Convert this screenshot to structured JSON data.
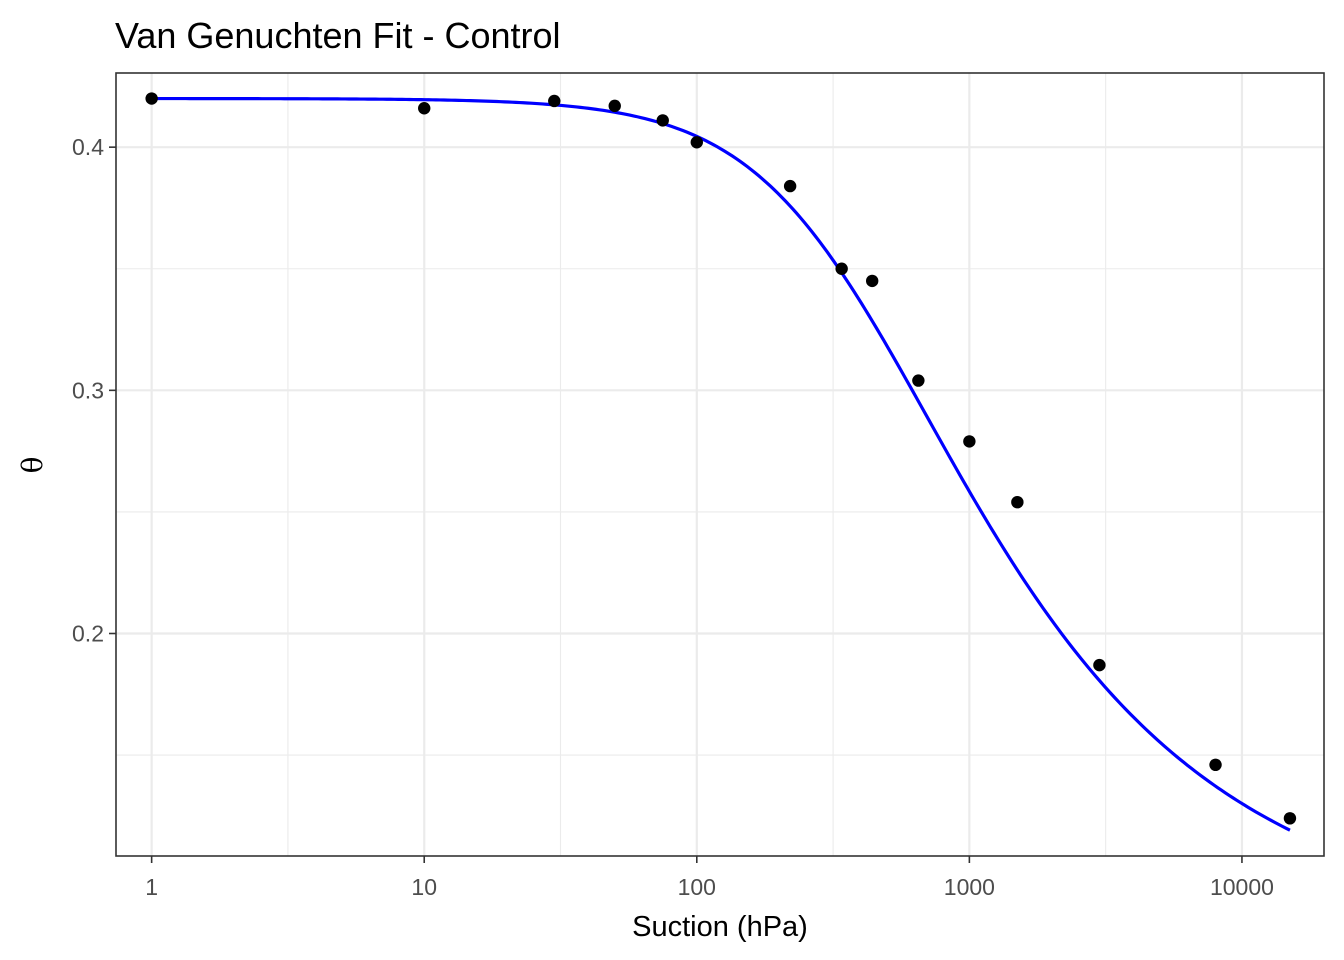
{
  "chart_data": {
    "type": "scatter",
    "title": "Van Genuchten Fit - Control",
    "xlabel": "Suction (hPa)",
    "ylabel": "θ",
    "x_scale": "log10",
    "xlim": [
      0.74,
      20000
    ],
    "ylim": [
      0.1085,
      0.4305
    ],
    "x_ticks": [
      1,
      10,
      100,
      1000,
      10000
    ],
    "x_tick_labels": [
      "1",
      "10",
      "100",
      "1000",
      "10000"
    ],
    "y_ticks": [
      0.2,
      0.3,
      0.4
    ],
    "y_tick_labels": [
      "0.2",
      "0.3",
      "0.4"
    ],
    "grid": true,
    "legend": "none",
    "series": [
      {
        "kind": "points",
        "color": "#000000",
        "x": [
          1,
          10,
          30,
          50,
          75,
          100,
          220,
          340,
          440,
          650,
          1000,
          1500,
          3000,
          8000,
          15000
        ],
        "y": [
          0.42,
          0.416,
          0.419,
          0.417,
          0.411,
          0.402,
          0.384,
          0.35,
          0.345,
          0.304,
          0.279,
          0.254,
          0.187,
          0.146,
          0.124
        ]
      },
      {
        "kind": "fit_line",
        "color": "#0000ff",
        "model": "van_genuchten",
        "params": {
          "theta_r": 0.075,
          "theta_s": 0.42,
          "alpha": 0.0028,
          "n": 1.55
        }
      }
    ]
  }
}
